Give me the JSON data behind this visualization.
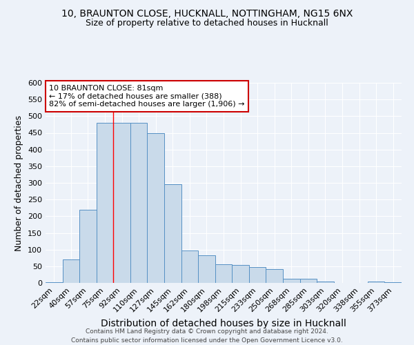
{
  "title_line1": "10, BRAUNTON CLOSE, HUCKNALL, NOTTINGHAM, NG15 6NX",
  "title_line2": "Size of property relative to detached houses in Hucknall",
  "xlabel": "Distribution of detached houses by size in Hucknall",
  "ylabel": "Number of detached properties",
  "categories": [
    "22sqm",
    "40sqm",
    "57sqm",
    "75sqm",
    "92sqm",
    "110sqm",
    "127sqm",
    "145sqm",
    "162sqm",
    "180sqm",
    "198sqm",
    "215sqm",
    "233sqm",
    "250sqm",
    "268sqm",
    "285sqm",
    "303sqm",
    "320sqm",
    "338sqm",
    "355sqm",
    "373sqm"
  ],
  "values": [
    2,
    70,
    220,
    480,
    480,
    480,
    450,
    295,
    97,
    82,
    55,
    54,
    47,
    41,
    13,
    13,
    5,
    1,
    1,
    5,
    2
  ],
  "bar_color": "#c9daea",
  "bar_edge_color": "#5590c4",
  "red_line_x": 3.5,
  "annotation_title": "10 BRAUNTON CLOSE: 81sqm",
  "annotation_line1": "← 17% of detached houses are smaller (388)",
  "annotation_line2": "82% of semi-detached houses are larger (1,906) →",
  "annotation_box_facecolor": "#ffffff",
  "annotation_box_edgecolor": "#cc0000",
  "ylim": [
    0,
    600
  ],
  "yticks": [
    0,
    50,
    100,
    150,
    200,
    250,
    300,
    350,
    400,
    450,
    500,
    550,
    600
  ],
  "footer_line1": "Contains HM Land Registry data © Crown copyright and database right 2024.",
  "footer_line2": "Contains public sector information licensed under the Open Government Licence v3.0.",
  "bg_color": "#edf2f9",
  "grid_color": "#ffffff",
  "title_fontsize": 10,
  "subtitle_fontsize": 9,
  "xlabel_fontsize": 10,
  "ylabel_fontsize": 9,
  "tick_fontsize": 8,
  "annotation_fontsize": 8,
  "footer_fontsize": 6.5
}
